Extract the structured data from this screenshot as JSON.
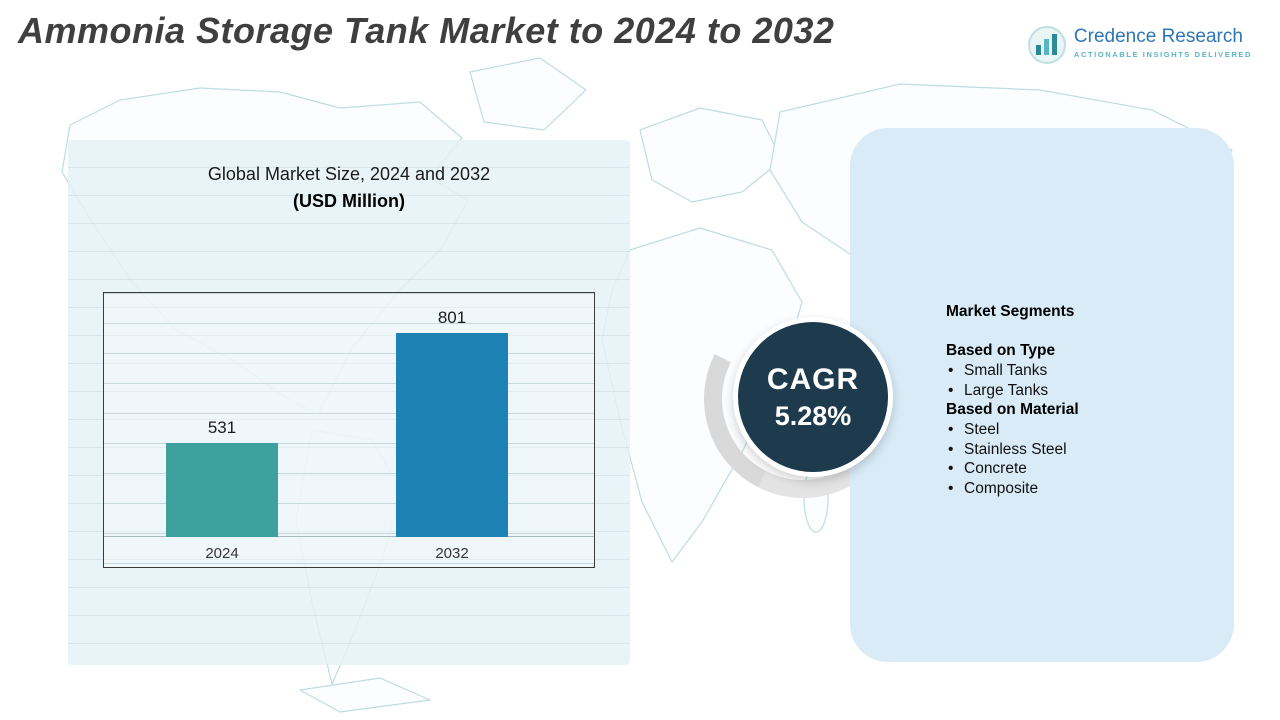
{
  "title": "Ammonia Storage Tank Market to 2024 to 2032",
  "logo": {
    "name": "Credence Research",
    "tagline": "Actionable Insights Delivered"
  },
  "left_panel": {
    "chart_title_line1": "Global Market Size, 2024 and 2032",
    "chart_title_line2": "(USD Million)"
  },
  "cagr": {
    "label": "CAGR",
    "value": "5.28%"
  },
  "segments": {
    "heading": "Market Segments",
    "groups": [
      {
        "heading": "Based on Type",
        "items": [
          "Small Tanks",
          "Large Tanks"
        ]
      },
      {
        "heading": "Based on Material",
        "items": [
          "Steel",
          "Stainless Steel",
          "Concrete",
          "Composite"
        ]
      }
    ]
  },
  "chart_data": {
    "type": "bar",
    "categories": [
      "2024",
      "2032"
    ],
    "values": [
      531,
      801
    ],
    "title": "Global Market Size, 2024 and 2032 (USD Million)",
    "xlabel": "",
    "ylabel": "",
    "ylim": [
      0,
      900
    ],
    "grid": true,
    "legend": "none",
    "bar_colors": [
      "#3da29d",
      "#1f82b4"
    ]
  },
  "colors": {
    "title_text": "#3f3f3f",
    "panel_left_bg": "#e3f2f7",
    "panel_right_bg": "#d8ebf6",
    "cagr_circle": "#1d3b4d",
    "map_stroke": "#bfdce2",
    "logo_blue": "#2e75b6",
    "logo_teal": "#5ab5c6"
  }
}
